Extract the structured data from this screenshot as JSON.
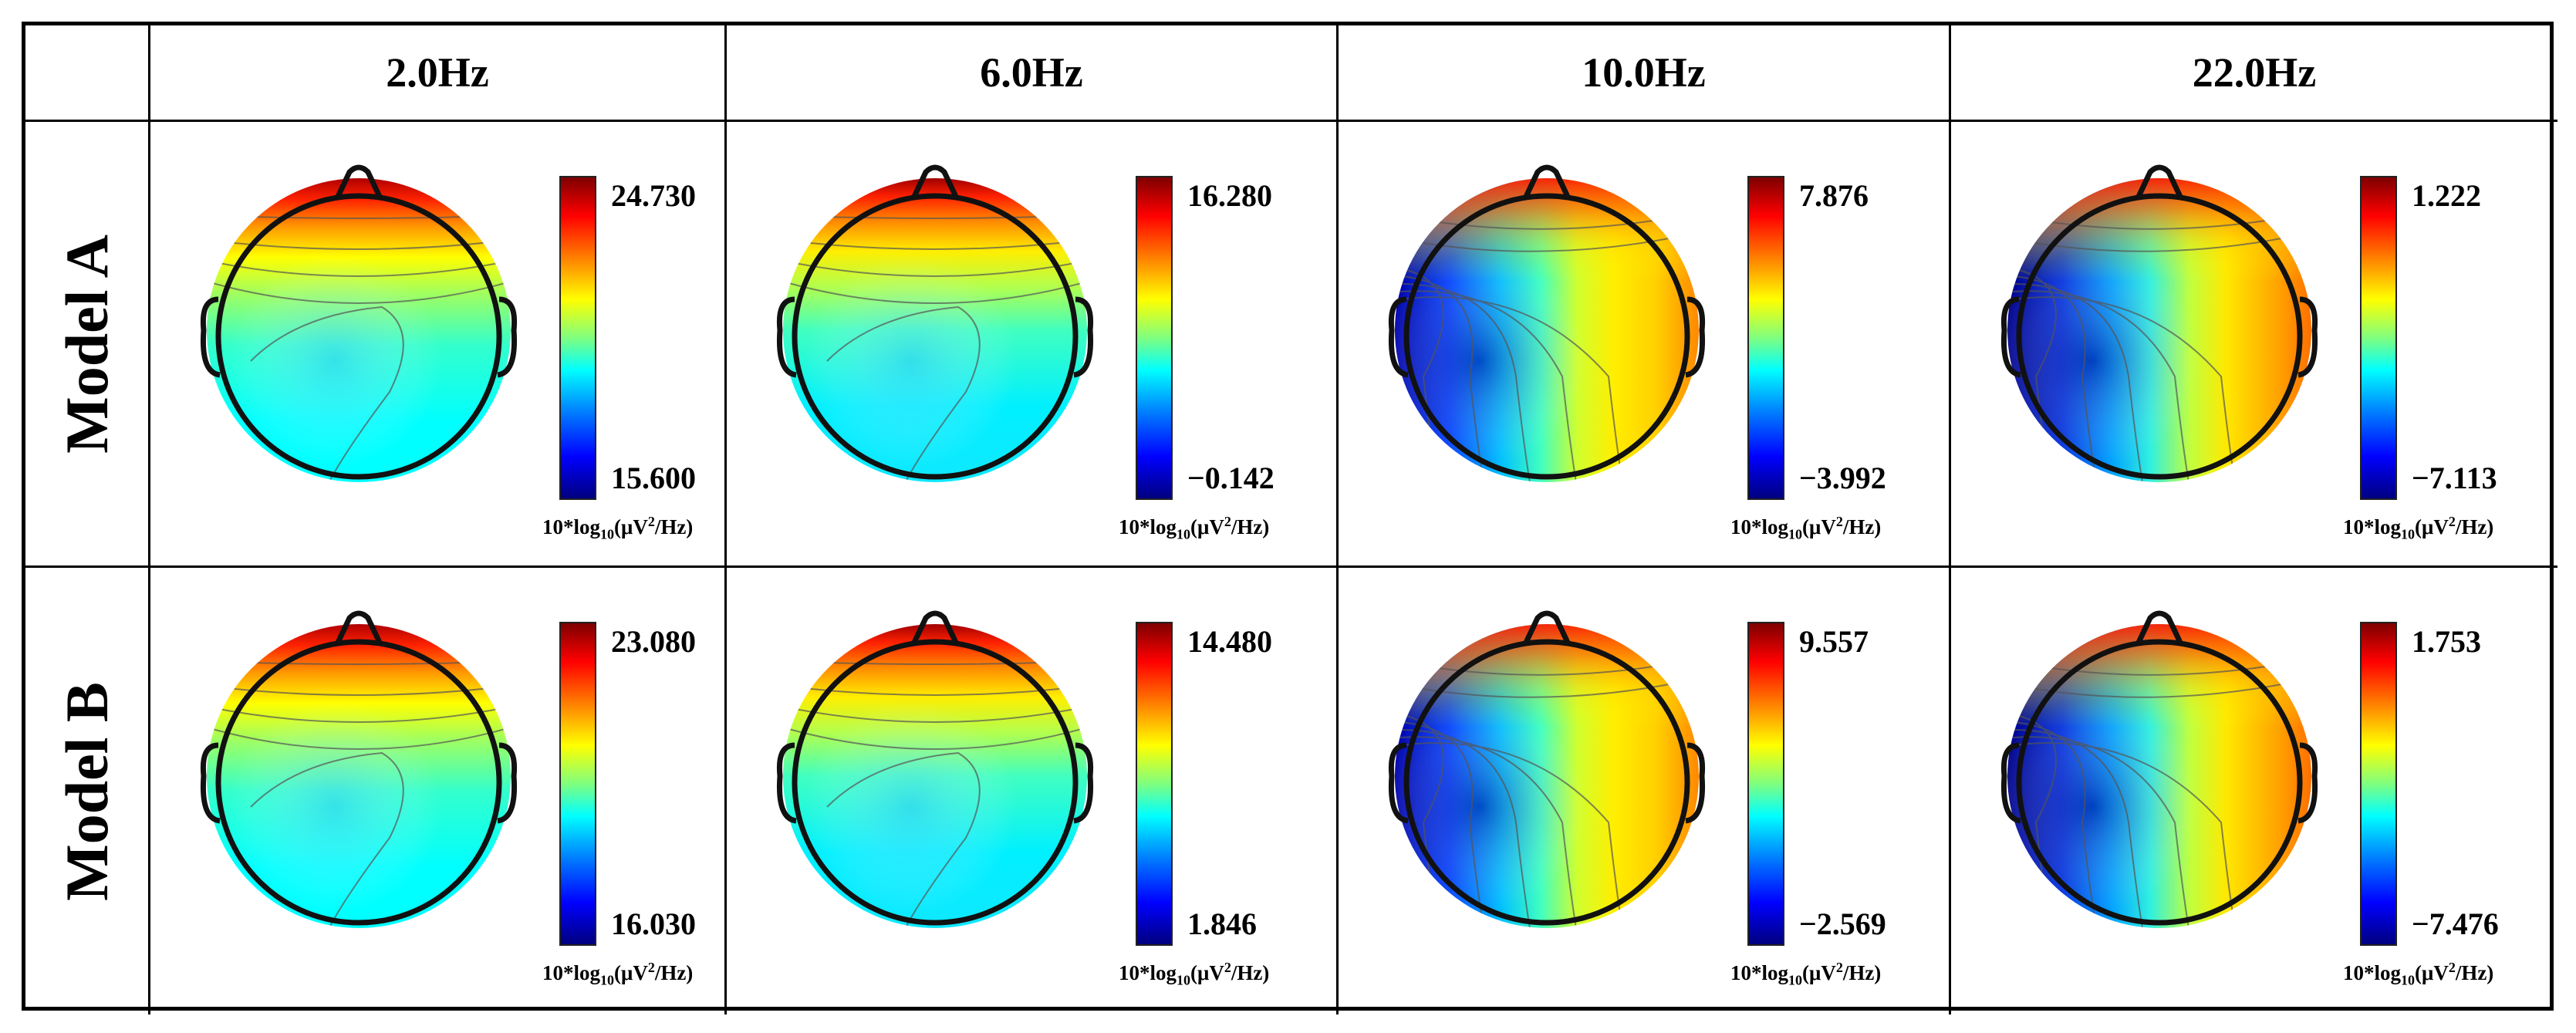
{
  "frequencies": [
    "2.0Hz",
    "6.0Hz",
    "10.0Hz",
    "22.0Hz"
  ],
  "models": [
    "Model A",
    "Model B"
  ],
  "unit": {
    "prefix": "10*log",
    "sub": "10",
    "open": "(μV",
    "sup": "2",
    "close": "/Hz)"
  },
  "colormap": [
    "#00007f",
    "#0000ff",
    "#007fff",
    "#00ffff",
    "#7fff7f",
    "#ffff00",
    "#ff7f00",
    "#ff0000",
    "#7f0000"
  ],
  "maps": [
    [
      {
        "max": "24.730",
        "min": "15.600"
      },
      {
        "max": "16.280",
        "min": "−0.142"
      },
      {
        "max": "7.876",
        "min": "−3.992"
      },
      {
        "max": "1.222",
        "min": "−7.113"
      }
    ],
    [
      {
        "max": "23.080",
        "min": "16.030"
      },
      {
        "max": "14.480",
        "min": "1.846"
      },
      {
        "max": "9.557",
        "min": "−2.569"
      },
      {
        "max": "1.753",
        "min": "−7.476"
      }
    ]
  ]
}
